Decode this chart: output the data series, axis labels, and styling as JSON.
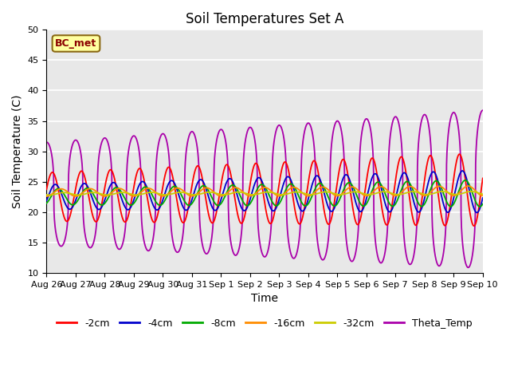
{
  "title": "Soil Temperatures Set A",
  "xlabel": "Time",
  "ylabel": "Soil Temperature (C)",
  "ylim": [
    10,
    50
  ],
  "n_days": 15,
  "annotation": "BC_met",
  "annotation_color": "#8B0000",
  "annotation_bg": "#FFFFA0",
  "annotation_border": "#8B6914",
  "background_color": "#E8E8E8",
  "grid_color": "white",
  "series": [
    {
      "name": "-2cm",
      "color": "#FF0000"
    },
    {
      "name": "-4cm",
      "color": "#0000CC"
    },
    {
      "name": "-8cm",
      "color": "#00AA00"
    },
    {
      "name": "-16cm",
      "color": "#FF8C00"
    },
    {
      "name": "-32cm",
      "color": "#CCCC00"
    },
    {
      "name": "Theta_Temp",
      "color": "#AA00AA"
    }
  ],
  "tick_labels": [
    "Aug 26",
    "Aug 27",
    "Aug 28",
    "Aug 29",
    "Aug 30",
    "Aug 31",
    "Sep 1",
    "Sep 2",
    "Sep 3",
    "Sep 4",
    "Sep 5",
    "Sep 6",
    "Sep 7",
    "Sep 8",
    "Sep 9",
    "Sep 10"
  ],
  "title_fontsize": 12,
  "axis_fontsize": 10,
  "tick_fontsize": 8,
  "legend_fontsize": 9
}
